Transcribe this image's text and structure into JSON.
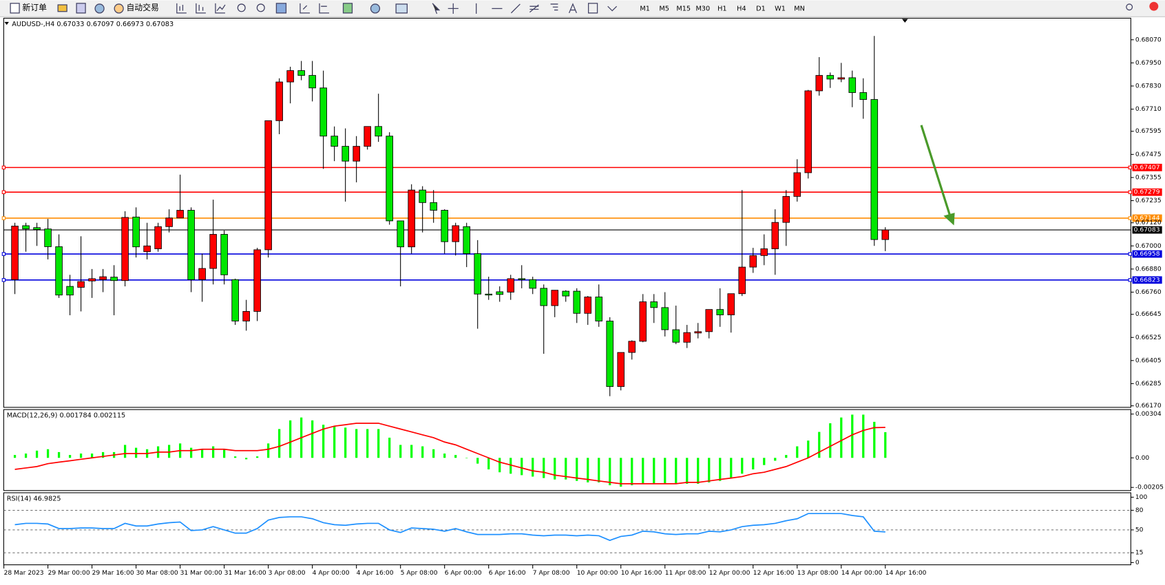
{
  "toolbar": {
    "buttons": [
      "新订单",
      "自动交易"
    ],
    "timeframes": [
      "M1",
      "M5",
      "M15",
      "M30",
      "H1",
      "H4",
      "D1",
      "W1",
      "MN"
    ]
  },
  "chart_data": {
    "type": "candlestick",
    "symbol": "AUDUSD-,H4",
    "up_color": "#ff0000",
    "down_color": "#00e600",
    "ohlc": [
      [
        0.66825,
        0.6712,
        0.6675,
        0.67103
      ],
      [
        0.67105,
        0.6712,
        0.6697,
        0.67088
      ],
      [
        0.67095,
        0.6712,
        0.67,
        0.67085
      ],
      [
        0.67088,
        0.6714,
        0.6693,
        0.66996
      ],
      [
        0.66996,
        0.6706,
        0.6673,
        0.66745
      ],
      [
        0.6679,
        0.6685,
        0.6664,
        0.66745
      ],
      [
        0.66785,
        0.6705,
        0.6666,
        0.66815
      ],
      [
        0.66818,
        0.6688,
        0.6673,
        0.6683
      ],
      [
        0.66825,
        0.6688,
        0.6676,
        0.6684
      ],
      [
        0.66838,
        0.669,
        0.6664,
        0.6682
      ],
      [
        0.6682,
        0.6718,
        0.6679,
        0.67148
      ],
      [
        0.6715,
        0.672,
        0.6694,
        0.66995
      ],
      [
        0.6697,
        0.6712,
        0.6693,
        0.67
      ],
      [
        0.66985,
        0.6712,
        0.6697,
        0.671
      ],
      [
        0.671,
        0.6719,
        0.6707,
        0.67145
      ],
      [
        0.67145,
        0.6737,
        0.67145,
        0.67185
      ],
      [
        0.67185,
        0.672,
        0.6676,
        0.66825
      ],
      [
        0.66825,
        0.6696,
        0.6671,
        0.66883
      ],
      [
        0.66883,
        0.6724,
        0.668,
        0.6706
      ],
      [
        0.6706,
        0.6708,
        0.668,
        0.6685
      ],
      [
        0.66825,
        0.6683,
        0.6659,
        0.6661
      ],
      [
        0.6661,
        0.6672,
        0.6656,
        0.6666
      ],
      [
        0.6666,
        0.6699,
        0.6661,
        0.6698
      ],
      [
        0.6698,
        0.6765,
        0.6694,
        0.6765
      ],
      [
        0.6765,
        0.6787,
        0.6758,
        0.67851
      ],
      [
        0.67851,
        0.6793,
        0.6774,
        0.6791
      ],
      [
        0.6791,
        0.6796,
        0.6786,
        0.67885
      ],
      [
        0.67885,
        0.6796,
        0.6775,
        0.6782
      ],
      [
        0.6782,
        0.6791,
        0.674,
        0.6757
      ],
      [
        0.6757,
        0.6762,
        0.6744,
        0.67517
      ],
      [
        0.67517,
        0.6761,
        0.6723,
        0.6744
      ],
      [
        0.6744,
        0.6757,
        0.6733,
        0.67517
      ],
      [
        0.67517,
        0.6762,
        0.675,
        0.6762
      ],
      [
        0.6762,
        0.6779,
        0.6754,
        0.6757
      ],
      [
        0.6757,
        0.6759,
        0.6711,
        0.6713
      ],
      [
        0.6713,
        0.6713,
        0.6679,
        0.66995
      ],
      [
        0.66995,
        0.6732,
        0.6696,
        0.6729
      ],
      [
        0.6729,
        0.6731,
        0.6707,
        0.67225
      ],
      [
        0.67225,
        0.6729,
        0.6712,
        0.67185
      ],
      [
        0.67185,
        0.6719,
        0.6696,
        0.67022
      ],
      [
        0.67022,
        0.6712,
        0.6695,
        0.67105
      ],
      [
        0.671,
        0.6712,
        0.6689,
        0.6696
      ],
      [
        0.6696,
        0.6703,
        0.6657,
        0.6675
      ],
      [
        0.6675,
        0.6684,
        0.6672,
        0.66745
      ],
      [
        0.66762,
        0.6679,
        0.6671,
        0.66748
      ],
      [
        0.6676,
        0.6685,
        0.6672,
        0.6683
      ],
      [
        0.6683,
        0.669,
        0.6678,
        0.66825
      ],
      [
        0.66825,
        0.6684,
        0.6675,
        0.6678
      ],
      [
        0.6678,
        0.668,
        0.6644,
        0.6669
      ],
      [
        0.6669,
        0.6677,
        0.6663,
        0.6677
      ],
      [
        0.66765,
        0.6677,
        0.6671,
        0.6674
      ],
      [
        0.66765,
        0.6678,
        0.666,
        0.6665
      ],
      [
        0.6665,
        0.6674,
        0.6659,
        0.66735
      ],
      [
        0.66735,
        0.668,
        0.6658,
        0.6661
      ],
      [
        0.6661,
        0.6663,
        0.6622,
        0.6627
      ],
      [
        0.6627,
        0.66447,
        0.6625,
        0.66447
      ],
      [
        0.66447,
        0.6651,
        0.6641,
        0.66505
      ],
      [
        0.66505,
        0.6675,
        0.665,
        0.6671
      ],
      [
        0.6671,
        0.6675,
        0.666,
        0.6668
      ],
      [
        0.6668,
        0.6676,
        0.6653,
        0.66565
      ],
      [
        0.66565,
        0.6669,
        0.6649,
        0.665
      ],
      [
        0.665,
        0.6659,
        0.6647,
        0.6655
      ],
      [
        0.66548,
        0.666,
        0.6652,
        0.66555
      ],
      [
        0.66555,
        0.6667,
        0.6652,
        0.6667
      ],
      [
        0.6667,
        0.6678,
        0.6658,
        0.66642
      ],
      [
        0.66642,
        0.6675,
        0.6655,
        0.66752
      ],
      [
        0.66752,
        0.6729,
        0.6674,
        0.6689
      ],
      [
        0.6689,
        0.6699,
        0.6686,
        0.6695
      ],
      [
        0.6695,
        0.6706,
        0.669,
        0.66985
      ],
      [
        0.66985,
        0.6719,
        0.6685,
        0.67122
      ],
      [
        0.67122,
        0.6729,
        0.67,
        0.67257
      ],
      [
        0.67257,
        0.6745,
        0.6723,
        0.6738
      ],
      [
        0.6738,
        0.6781,
        0.6735,
        0.67805
      ],
      [
        0.67805,
        0.6798,
        0.6778,
        0.67885
      ],
      [
        0.67885,
        0.679,
        0.6782,
        0.67866
      ],
      [
        0.67866,
        0.6795,
        0.6785,
        0.67873
      ],
      [
        0.67873,
        0.6791,
        0.6772,
        0.67796
      ],
      [
        0.67796,
        0.6787,
        0.6766,
        0.6776
      ],
      [
        0.6776,
        0.6809,
        0.67,
        0.67033
      ],
      [
        0.67033,
        0.67097,
        0.66973,
        0.67083
      ]
    ],
    "ylim": [
      0.66162,
      0.68182
    ],
    "yticks": [
      {
        "value": 0.6807,
        "label": "0.68070"
      },
      {
        "value": 0.6795,
        "label": "0.67950"
      },
      {
        "value": 0.6783,
        "label": "0.67830"
      },
      {
        "value": 0.6771,
        "label": "0.67710"
      },
      0.67595,
      0.67475,
      0.67355,
      0.67235,
      {
        "value": 0.6712,
        "label": "0.67120"
      },
      {
        "value": 0.67,
        "label": "0.67000"
      },
      {
        "value": 0.6688,
        "label": "0.66880"
      },
      {
        "value": 0.6676,
        "label": "0.66760"
      },
      0.66645,
      0.66525,
      0.66405,
      0.66285,
      {
        "value": 0.6617,
        "label": "0.66170"
      }
    ],
    "levels": [
      {
        "value": 0.67407,
        "color": "#ff0000"
      },
      {
        "value": 0.67279,
        "color": "#ff0000"
      },
      {
        "value": 0.67144,
        "color": "#ff8c00"
      },
      {
        "value": 0.66958,
        "color": "#0000dd"
      },
      {
        "value": 0.66823,
        "color": "#0000dd"
      }
    ],
    "x_labels": [
      "28 Mar 2023",
      "29 Mar 00:00",
      "29 Mar 16:00",
      "30 Mar 08:00",
      "31 Mar 00:00",
      "31 Mar 16:00",
      "3 Apr 08:00",
      "4 Apr 00:00",
      "4 Apr 16:00",
      "5 Apr 08:00",
      "6 Apr 00:00",
      "6 Apr 16:00",
      "7 Apr 08:00",
      "10 Apr 00:00",
      "10 Apr 16:00",
      "11 Apr 08:00",
      "12 Apr 00:00",
      "12 Apr 16:00",
      "13 Apr 08:00",
      "14 Apr 00:00",
      "14 Apr 16:00"
    ],
    "macd": {
      "title": "MACD(12,26,9)",
      "histogram_color": "#00ff00",
      "signal_color": "#ff0000",
      "histogram": [
        0.0002,
        0.0003,
        0.0005,
        0.0006,
        0.0004,
        0.0002,
        0.0003,
        0.0003,
        0.0004,
        0.0004,
        0.0009,
        0.0007,
        0.0006,
        0.0008,
        0.0009,
        0.001,
        0.0007,
        0.0006,
        0.0008,
        0.0006,
        0.0001,
        -0.0001,
        0.0001,
        0.001,
        0.002,
        0.0026,
        0.0028,
        0.0026,
        0.0023,
        0.0022,
        0.0021,
        0.002,
        0.002,
        0.002,
        0.0014,
        0.0009,
        0.0009,
        0.0008,
        0.0006,
        0.0003,
        0.0002,
        0,
        -0.0004,
        -0.0008,
        -0.001,
        -0.0011,
        -0.0012,
        -0.0013,
        -0.0014,
        -0.0015,
        -0.0015,
        -0.0016,
        -0.0017,
        -0.0017,
        -0.0019,
        -0.002,
        -0.0019,
        -0.0018,
        -0.0018,
        -0.0018,
        -0.0018,
        -0.0018,
        -0.0018,
        -0.0017,
        -0.0016,
        -0.0014,
        -0.0011,
        -0.0008,
        -0.0005,
        -0.0002,
        0.0002,
        0.0008,
        0.0012,
        0.0018,
        0.0024,
        0.0028,
        0.003,
        0.003,
        0.0025,
        0.001784
      ],
      "signal": [
        -0.0008,
        -0.0007,
        -0.0006,
        -0.0004,
        -0.0003,
        -0.0002,
        -0.0001,
        0,
        0.0001,
        0.0002,
        0.0003,
        0.0003,
        0.0003,
        0.0004,
        0.0004,
        0.0005,
        0.0005,
        0.0006,
        0.0006,
        0.0006,
        0.0005,
        0.0005,
        0.0005,
        0.0006,
        0.0008,
        0.0011,
        0.0014,
        0.0017,
        0.002,
        0.0022,
        0.0023,
        0.0024,
        0.0024,
        0.0024,
        0.0022,
        0.002,
        0.0018,
        0.0016,
        0.0014,
        0.0011,
        0.0009,
        0.0006,
        0.0003,
        0,
        -0.0003,
        -0.0005,
        -0.0007,
        -0.0009,
        -0.001,
        -0.0012,
        -0.0013,
        -0.0014,
        -0.0015,
        -0.0016,
        -0.0017,
        -0.0018,
        -0.0018,
        -0.0018,
        -0.0018,
        -0.0018,
        -0.0018,
        -0.0017,
        -0.0017,
        -0.0016,
        -0.0015,
        -0.0014,
        -0.0013,
        -0.0011,
        -0.001,
        -0.0008,
        -0.0006,
        -0.0003,
        0,
        0.0004,
        0.0008,
        0.0012,
        0.0016,
        0.0019,
        0.0021,
        0.002115
      ],
      "ylim": [
        -0.002267,
        0.00335
      ],
      "yticks": [
        0.00304,
        {
          "value": 0,
          "label": "0.00"
        },
        -0.00205
      ]
    },
    "rsi": {
      "title": "RSI(14)",
      "color": "#1e90ff",
      "values": [
        58,
        60,
        60,
        59,
        52,
        52,
        53,
        53,
        52,
        52,
        60,
        56,
        56,
        59,
        61,
        62,
        49,
        50,
        55,
        50,
        45,
        45,
        52,
        65,
        69,
        70,
        70,
        67,
        61,
        58,
        57,
        59,
        60,
        60,
        50,
        46,
        53,
        52,
        51,
        48,
        52,
        47,
        43,
        43,
        43,
        44,
        44,
        42,
        41,
        42,
        42,
        41,
        42,
        41,
        34,
        40,
        42,
        48,
        47,
        44,
        43,
        44,
        44,
        48,
        47,
        50,
        55,
        57,
        58,
        60,
        64,
        67,
        75,
        75,
        75,
        75,
        72,
        70,
        48,
        46.9825
      ],
      "ylim": [
        -3.4,
        106.8
      ],
      "yticks": [
        100,
        80,
        50,
        15,
        0
      ]
    }
  }
}
